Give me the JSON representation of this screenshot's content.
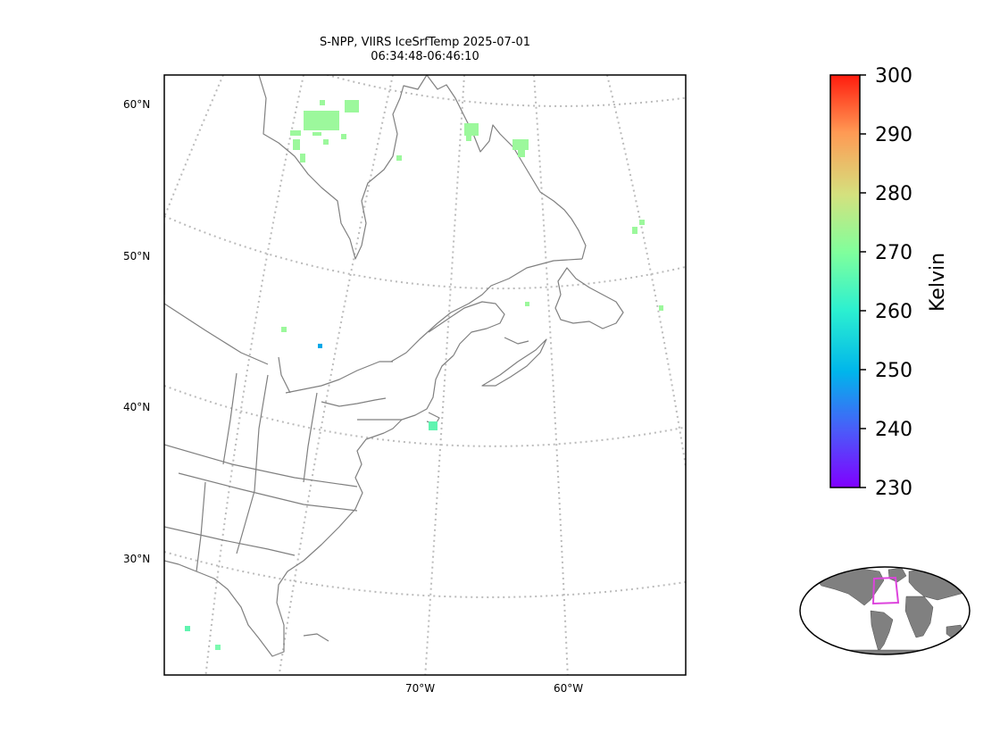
{
  "title": {
    "line1": "S-NPP, VIIRS IceSrfTemp 2025-07-01",
    "line2": "06:34:48-06:46:10"
  },
  "lat_labels": [
    "60°N",
    "50°N",
    "40°N",
    "30°N"
  ],
  "lon_labels": [
    "70°W",
    "60°W"
  ],
  "colorbar": {
    "label": "Kelvin",
    "ticks": [
      "300",
      "290",
      "280",
      "270",
      "260",
      "250",
      "240",
      "230"
    ],
    "min": 230,
    "max": 300,
    "colormap": "rainbow"
  },
  "data_points": [
    {
      "id": "hudson-cluster",
      "value": 268
    },
    {
      "id": "ungava-cluster",
      "value": 268
    },
    {
      "id": "baffin-patch",
      "value": 268
    },
    {
      "id": "labrador-sea-a",
      "value": 268
    },
    {
      "id": "labrador-sea-b",
      "value": 268
    },
    {
      "id": "atlantic-east",
      "value": 269
    },
    {
      "id": "gulf-st-lawrence",
      "value": 268
    },
    {
      "id": "ontario-green",
      "value": 267
    },
    {
      "id": "quebec-blue",
      "value": 250
    },
    {
      "id": "cape-cod",
      "value": 262
    },
    {
      "id": "gulf-mexico-a",
      "value": 262
    },
    {
      "id": "gulf-mexico-b",
      "value": 266
    }
  ],
  "inset": {
    "name": "global-locator-map",
    "highlight_color": "#dd44dd",
    "land_color": "#808080"
  },
  "colors": {
    "coastline": "#808080",
    "graticule": "#bbbbbb"
  }
}
